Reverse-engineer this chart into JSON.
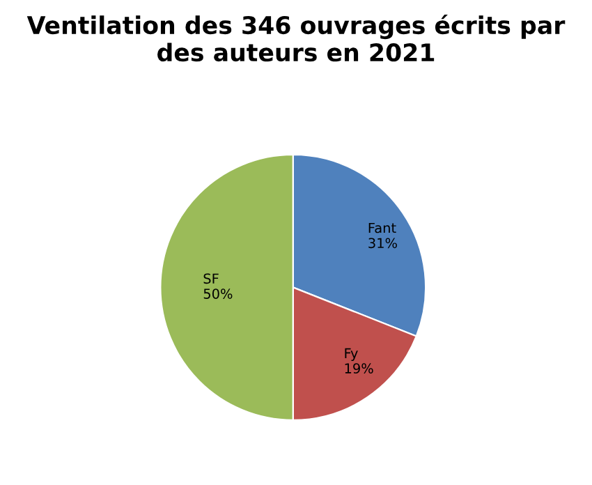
{
  "chart_data": {
    "type": "pie",
    "title": "Ventilation des 346 ouvrages écrits par des auteurs en 2021",
    "categories": [
      "Fant",
      "Fy",
      "SF"
    ],
    "values": [
      31,
      19,
      50
    ],
    "colors": [
      "#4f81bd",
      "#c0504d",
      "#9bbb59"
    ],
    "value_labels": [
      "31%",
      "19%",
      "50%"
    ],
    "legend": false
  }
}
